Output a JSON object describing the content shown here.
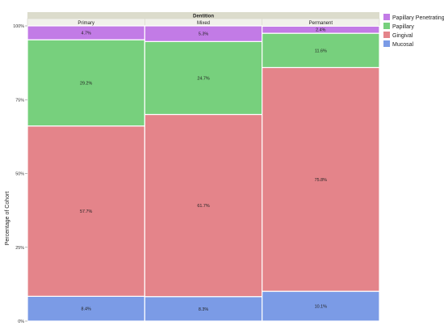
{
  "chart_data": {
    "type": "bar",
    "stacked": true,
    "normalized": true,
    "header_title": "Dentition",
    "categories": [
      "Primary",
      "Mixed",
      "Permanent"
    ],
    "ylabel": "Percentage of Cohort",
    "ylim": [
      0,
      100
    ],
    "yticks": [
      "0%",
      "25%",
      "50%",
      "75%",
      "100%"
    ],
    "series": [
      {
        "name": "Mucosal",
        "color": "#7b9be6",
        "values": [
          8.4,
          8.3,
          10.1
        ],
        "labels": [
          "8.4%",
          "8.3%",
          "10.1%"
        ]
      },
      {
        "name": "Gingival",
        "color": "#e4848a",
        "values": [
          57.7,
          61.7,
          75.8
        ],
        "labels": [
          "57.7%",
          "61.7%",
          "75.8%"
        ]
      },
      {
        "name": "Papillary",
        "color": "#77d07d",
        "values": [
          29.2,
          24.7,
          11.6
        ],
        "labels": [
          "29.2%",
          "24.7%",
          "11.6%"
        ]
      },
      {
        "name": "Papillary Penetrating",
        "color": "#c27be6",
        "values": [
          4.7,
          5.3,
          2.4
        ],
        "labels": [
          "4.7%",
          "5.3%",
          "2.4%"
        ]
      }
    ],
    "legend": [
      "Papillary Penetrating",
      "Papillary",
      "Gingival",
      "Mucosal"
    ],
    "legend_position": "top-right",
    "grid": false
  }
}
